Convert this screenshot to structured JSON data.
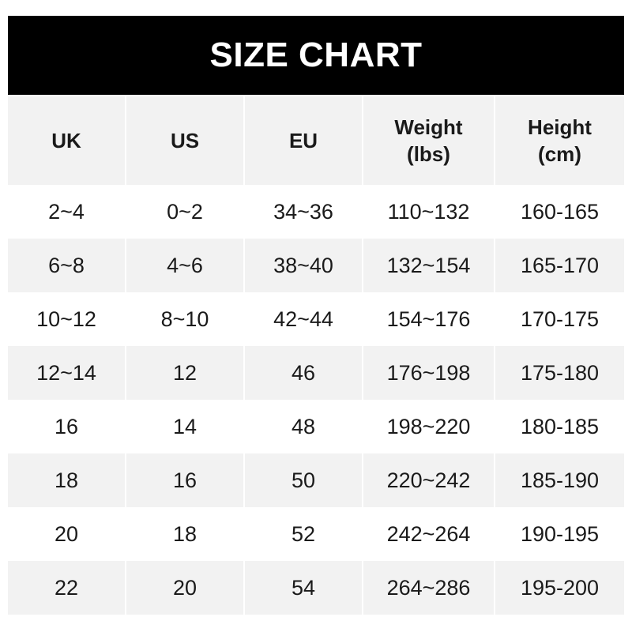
{
  "title": "SIZE CHART",
  "headers": [
    "UK",
    "US",
    "EU",
    "Weight\n(lbs)",
    "Height\n(cm)"
  ],
  "rows": [
    [
      "2~4",
      "0~2",
      "34~36",
      "110~132",
      "160-165"
    ],
    [
      "6~8",
      "4~6",
      "38~40",
      "132~154",
      "165-170"
    ],
    [
      "10~12",
      "8~10",
      "42~44",
      "154~176",
      "170-175"
    ],
    [
      "12~14",
      "12",
      "46",
      "176~198",
      "175-180"
    ],
    [
      "16",
      "14",
      "48",
      "198~220",
      "180-185"
    ],
    [
      "18",
      "16",
      "50",
      "220~242",
      "185-190"
    ],
    [
      "20",
      "18",
      "52",
      "242~264",
      "190-195"
    ],
    [
      "22",
      "20",
      "54",
      "264~286",
      "195-200"
    ]
  ]
}
